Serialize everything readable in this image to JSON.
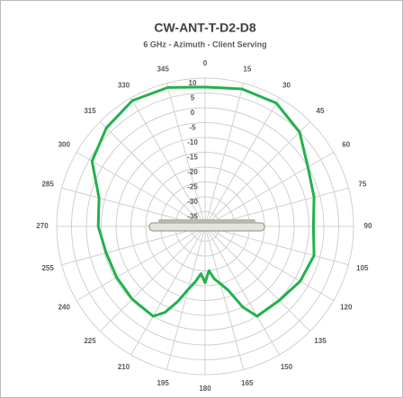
{
  "chart_data": {
    "type": "polar",
    "title": "CW-ANT-T-D2-D8",
    "subtitle": "6 GHz - Azimuth - Client Serving",
    "theta": [
      0,
      15,
      30,
      45,
      60,
      75,
      90,
      105,
      120,
      135,
      150,
      155,
      160,
      165,
      170,
      175,
      180,
      185,
      190,
      195,
      200,
      205,
      210,
      225,
      240,
      255,
      270,
      285,
      300,
      315,
      330,
      345
    ],
    "series": [
      {
        "color": "#22b14c",
        "values": [
          7,
          8,
          8,
          5,
          0,
          -2,
          -3.5,
          -2,
          -3,
          -4.7,
          -5,
          -10,
          -17,
          -20,
          -22,
          -25,
          -21,
          -24,
          -21,
          -18,
          -13,
          -8,
          -5,
          -5.3,
          -5.6,
          -5.5,
          -4,
          -3,
          4,
          7,
          9,
          8.5
        ]
      }
    ],
    "rlim": [
      -40,
      10
    ],
    "rticks": [
      10,
      5,
      0,
      -5,
      -10,
      -15,
      -20,
      -25,
      -30,
      -35
    ],
    "thetaticks": [
      0,
      15,
      30,
      45,
      60,
      75,
      90,
      105,
      120,
      135,
      150,
      165,
      180,
      195,
      210,
      225,
      240,
      255,
      270,
      285,
      300,
      315,
      330,
      345
    ],
    "grid": true
  }
}
